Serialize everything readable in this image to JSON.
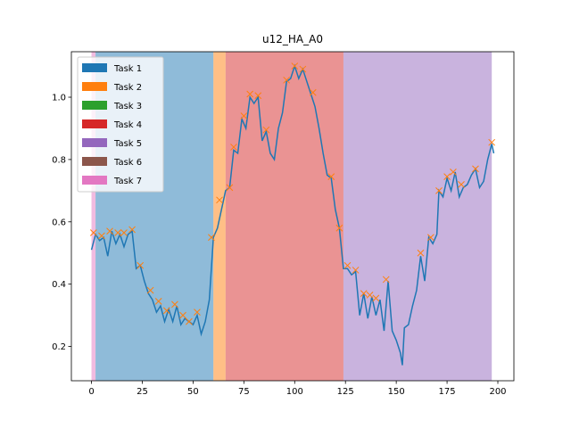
{
  "chart_data": {
    "type": "line",
    "title": "u12_HA_A0",
    "xlim": [
      -9.9,
      207.9
    ],
    "ylim": [
      0.09,
      1.146
    ],
    "xticks": [
      0,
      25,
      50,
      75,
      100,
      125,
      150,
      175,
      200
    ],
    "yticks": [
      0.2,
      0.4,
      0.6,
      0.8,
      {
        "value": 1,
        "label": "1.0"
      }
    ],
    "grid": false,
    "span_alpha": 0.5,
    "spans": [
      {
        "x0": 0,
        "x1": 2,
        "color": "#e377c2"
      },
      {
        "x0": 2,
        "x1": 60,
        "color": "#1f77b4"
      },
      {
        "x0": 60,
        "x1": 66,
        "color": "#ff7f0e"
      },
      {
        "x0": 66,
        "x1": 124,
        "color": "#d62728"
      },
      {
        "x0": 124,
        "x1": 197,
        "color": "#9467bd"
      }
    ],
    "legend_position": "upper left",
    "legend": [
      {
        "label": "Task 1",
        "color": "#1f77b4"
      },
      {
        "label": "Task 2",
        "color": "#ff7f0e"
      },
      {
        "label": "Task 3",
        "color": "#2ca02c"
      },
      {
        "label": "Task 4",
        "color": "#d62728"
      },
      {
        "label": "Task 5",
        "color": "#9467bd"
      },
      {
        "label": "Task 6",
        "color": "#8c564b"
      },
      {
        "label": "Task 7",
        "color": "#e377c2"
      }
    ],
    "series": [
      {
        "kind": "line",
        "color": "#1f77b4",
        "x": [
          0,
          2,
          4,
          6,
          8,
          10,
          12,
          14,
          16,
          18,
          20,
          22,
          24,
          26,
          28,
          30,
          32,
          34,
          36,
          38,
          40,
          42,
          44,
          46,
          48,
          50,
          52,
          54,
          56,
          58,
          60,
          62,
          64,
          66,
          68,
          70,
          72,
          74,
          76,
          78,
          80,
          82,
          84,
          86,
          88,
          90,
          92,
          94,
          96,
          98,
          100,
          102,
          104,
          106,
          108,
          110,
          112,
          114,
          116,
          118,
          120,
          122,
          124,
          126,
          128,
          130,
          132,
          134,
          136,
          138,
          140,
          142,
          144,
          146,
          148,
          150,
          152,
          153,
          154,
          156,
          158,
          160,
          162,
          164,
          166,
          168,
          170,
          171,
          173,
          175,
          177,
          179,
          181,
          183,
          185,
          187,
          189,
          191,
          193,
          195,
          197,
          198
        ],
        "values": [
          0.51,
          0.56,
          0.54,
          0.55,
          0.49,
          0.57,
          0.53,
          0.56,
          0.52,
          0.56,
          0.57,
          0.45,
          0.46,
          0.41,
          0.37,
          0.35,
          0.31,
          0.33,
          0.28,
          0.32,
          0.28,
          0.33,
          0.27,
          0.29,
          0.28,
          0.27,
          0.3,
          0.24,
          0.28,
          0.35,
          0.55,
          0.58,
          0.64,
          0.7,
          0.71,
          0.83,
          0.82,
          0.93,
          0.9,
          1.0,
          0.98,
          1.0,
          0.86,
          0.89,
          0.82,
          0.8,
          0.9,
          0.95,
          1.05,
          1.06,
          1.1,
          1.06,
          1.09,
          1.05,
          1.01,
          0.97,
          0.9,
          0.82,
          0.75,
          0.74,
          0.64,
          0.58,
          0.45,
          0.45,
          0.43,
          0.44,
          0.3,
          0.37,
          0.29,
          0.36,
          0.3,
          0.35,
          0.25,
          0.41,
          0.25,
          0.22,
          0.18,
          0.14,
          0.26,
          0.27,
          0.33,
          0.38,
          0.49,
          0.41,
          0.55,
          0.53,
          0.56,
          0.7,
          0.68,
          0.74,
          0.7,
          0.76,
          0.68,
          0.71,
          0.72,
          0.75,
          0.77,
          0.71,
          0.73,
          0.8,
          0.85,
          0.82
        ]
      },
      {
        "kind": "scatter",
        "marker": "x",
        "color": "#ff7f0e",
        "x": [
          1,
          5,
          9,
          13,
          16,
          20,
          24,
          29,
          33,
          37,
          41,
          45,
          48,
          52,
          59,
          63,
          68,
          70,
          75,
          78,
          82,
          86,
          96,
          100,
          104,
          109,
          118,
          122,
          126,
          130,
          134,
          137,
          140,
          145,
          162,
          167,
          171,
          175,
          178,
          182,
          189,
          197
        ],
        "values": [
          0.565,
          0.555,
          0.57,
          0.565,
          0.565,
          0.575,
          0.46,
          0.38,
          0.345,
          0.315,
          0.335,
          0.3,
          0.28,
          0.31,
          0.55,
          0.67,
          0.71,
          0.84,
          0.94,
          1.01,
          1.005,
          0.895,
          1.055,
          1.1,
          1.09,
          1.015,
          0.745,
          0.58,
          0.46,
          0.445,
          0.37,
          0.365,
          0.355,
          0.415,
          0.5,
          0.55,
          0.7,
          0.745,
          0.76,
          0.72,
          0.77,
          0.855
        ]
      }
    ]
  }
}
